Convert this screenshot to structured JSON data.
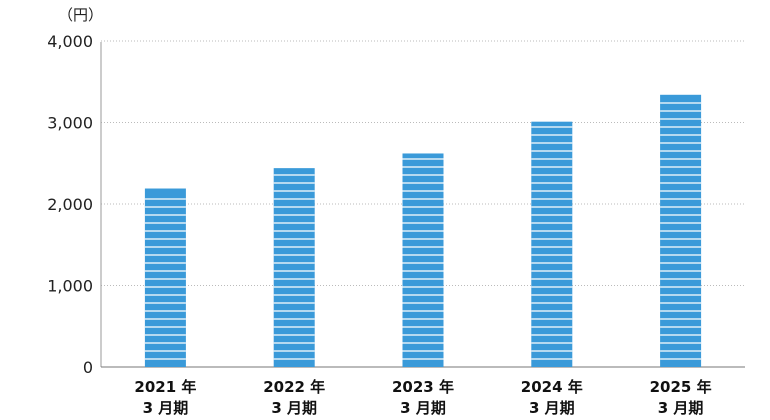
{
  "chart_data": {
    "type": "bar",
    "unit_label": "（円）",
    "categories": [
      {
        "line1": "2021 年",
        "line2": "3 月期"
      },
      {
        "line1": "2022 年",
        "line2": "3 月期"
      },
      {
        "line1": "2023 年",
        "line2": "3 月期"
      },
      {
        "line1": "2024 年",
        "line2": "3 月期"
      },
      {
        "line1": "2025 年",
        "line2": "3 月期"
      }
    ],
    "values": [
      2190,
      2440,
      2620,
      3010,
      3340
    ],
    "ylim": [
      0,
      4000
    ],
    "yticks": [
      0,
      1000,
      2000,
      3000,
      4000
    ],
    "ytick_labels": [
      "0",
      "1,000",
      "2,000",
      "3,000",
      "4,000"
    ],
    "grid": "horizontal dotted",
    "bar_color": "#3a9ad9",
    "bar_pattern": "white horizontal stripes"
  }
}
